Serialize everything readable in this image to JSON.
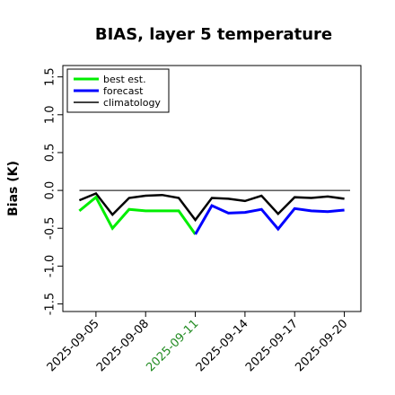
{
  "chart_data": {
    "type": "line",
    "title": "BIAS, layer 5 temperature",
    "xlabel": "",
    "ylabel": "Bias (K)",
    "x_ticks": [
      "2025-09-05",
      "2025-09-08",
      "2025-09-11",
      "2025-09-14",
      "2025-09-17",
      "2025-09-20"
    ],
    "highlighted_tick": "2025-09-11",
    "highlight_color": "#228B22",
    "y_ticks": [
      "-1.5",
      "-1.0",
      "-0.5",
      "0.0",
      "0.5",
      "1.0",
      "1.5"
    ],
    "ylim": [
      -1.6,
      1.65
    ],
    "xlim": [
      "2025-09-03",
      "2025-09-21"
    ],
    "legend_position": "top-left",
    "grid": false,
    "x": [
      "2025-09-04",
      "2025-09-05",
      "2025-09-06",
      "2025-09-07",
      "2025-09-08",
      "2025-09-09",
      "2025-09-10",
      "2025-09-11",
      "2025-09-12",
      "2025-09-13",
      "2025-09-14",
      "2025-09-15",
      "2025-09-16",
      "2025-09-17",
      "2025-09-18",
      "2025-09-19",
      "2025-09-20"
    ],
    "series": [
      {
        "name": "best est.",
        "color": "#00ee00",
        "line_width": 3,
        "values": [
          -0.27,
          -0.09,
          -0.5,
          -0.25,
          -0.27,
          -0.27,
          -0.27,
          -0.58,
          null,
          null,
          null,
          null,
          null,
          null,
          null,
          null,
          null
        ]
      },
      {
        "name": "forecast",
        "color": "#0000ff",
        "line_width": 3,
        "values": [
          null,
          null,
          null,
          null,
          null,
          null,
          null,
          -0.58,
          -0.2,
          -0.3,
          -0.29,
          -0.25,
          -0.51,
          -0.24,
          -0.27,
          -0.28,
          -0.26
        ]
      },
      {
        "name": "climatology",
        "color": "#000000",
        "line_width": 2.5,
        "values": [
          -0.13,
          -0.04,
          -0.32,
          -0.1,
          -0.07,
          -0.06,
          -0.1,
          -0.39,
          -0.1,
          -0.11,
          -0.14,
          -0.07,
          -0.31,
          -0.09,
          -0.1,
          -0.08,
          -0.11
        ]
      }
    ],
    "reference_line": {
      "y": 0.0,
      "color": "#000000"
    }
  }
}
